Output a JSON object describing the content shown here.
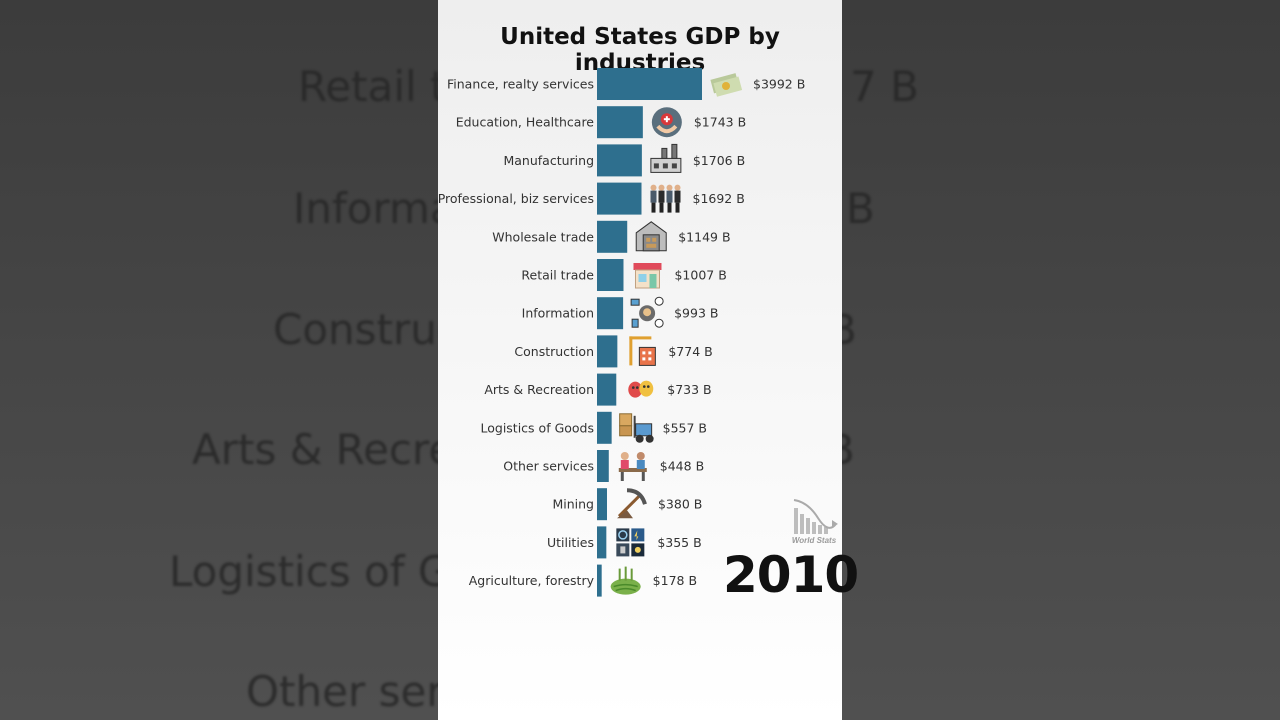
{
  "background_labels": [
    {
      "text": "Retail tra",
      "right_text": "7 B"
    },
    {
      "text": "Informat",
      "right_text": "B"
    },
    {
      "text": "Construct",
      "right_text": "B"
    },
    {
      "text": "Arts & Recreat",
      "right_text": "B"
    },
    {
      "text": "Logistics of Goo",
      "right_text": ""
    },
    {
      "text": "Other servi",
      "right_text": ""
    }
  ],
  "year": "2010",
  "logo_text": "World Stats",
  "chart_data": {
    "type": "bar",
    "orientation": "horizontal",
    "title": "United States GDP by industries",
    "categories": [
      "Finance, realty services",
      "Education, Healthcare",
      "Manufacturing",
      "Professional, biz services",
      "Wholesale trade",
      "Retail trade",
      "Information",
      "Construction",
      "Arts & Recreation",
      "Logistics of Goods",
      "Other services",
      "Mining",
      "Utilities",
      "Agriculture, forestry"
    ],
    "values": [
      3992,
      1743,
      1706,
      1692,
      1149,
      1007,
      993,
      774,
      733,
      557,
      448,
      380,
      355,
      178
    ],
    "value_labels": [
      "$3992 B",
      "$1743 B",
      "$1706 B",
      "$1692 B",
      "$1149 B",
      "$1007 B",
      "$993 B",
      "$774 B",
      "$733 B",
      "$557 B",
      "$448 B",
      "$380 B",
      "$355 B",
      "$178 B"
    ],
    "icons": [
      "money-icon",
      "healthcare-icon",
      "factory-icon",
      "business-people-icon",
      "warehouse-icon",
      "store-icon",
      "network-icon",
      "construction-crane-icon",
      "theater-masks-icon",
      "forklift-icon",
      "services-people-icon",
      "pickaxe-icon",
      "utilities-icon",
      "farm-field-icon"
    ],
    "bar_color": "#2e6f8e",
    "xlim": [
      0,
      4000
    ],
    "grid": false,
    "legend": "none"
  }
}
